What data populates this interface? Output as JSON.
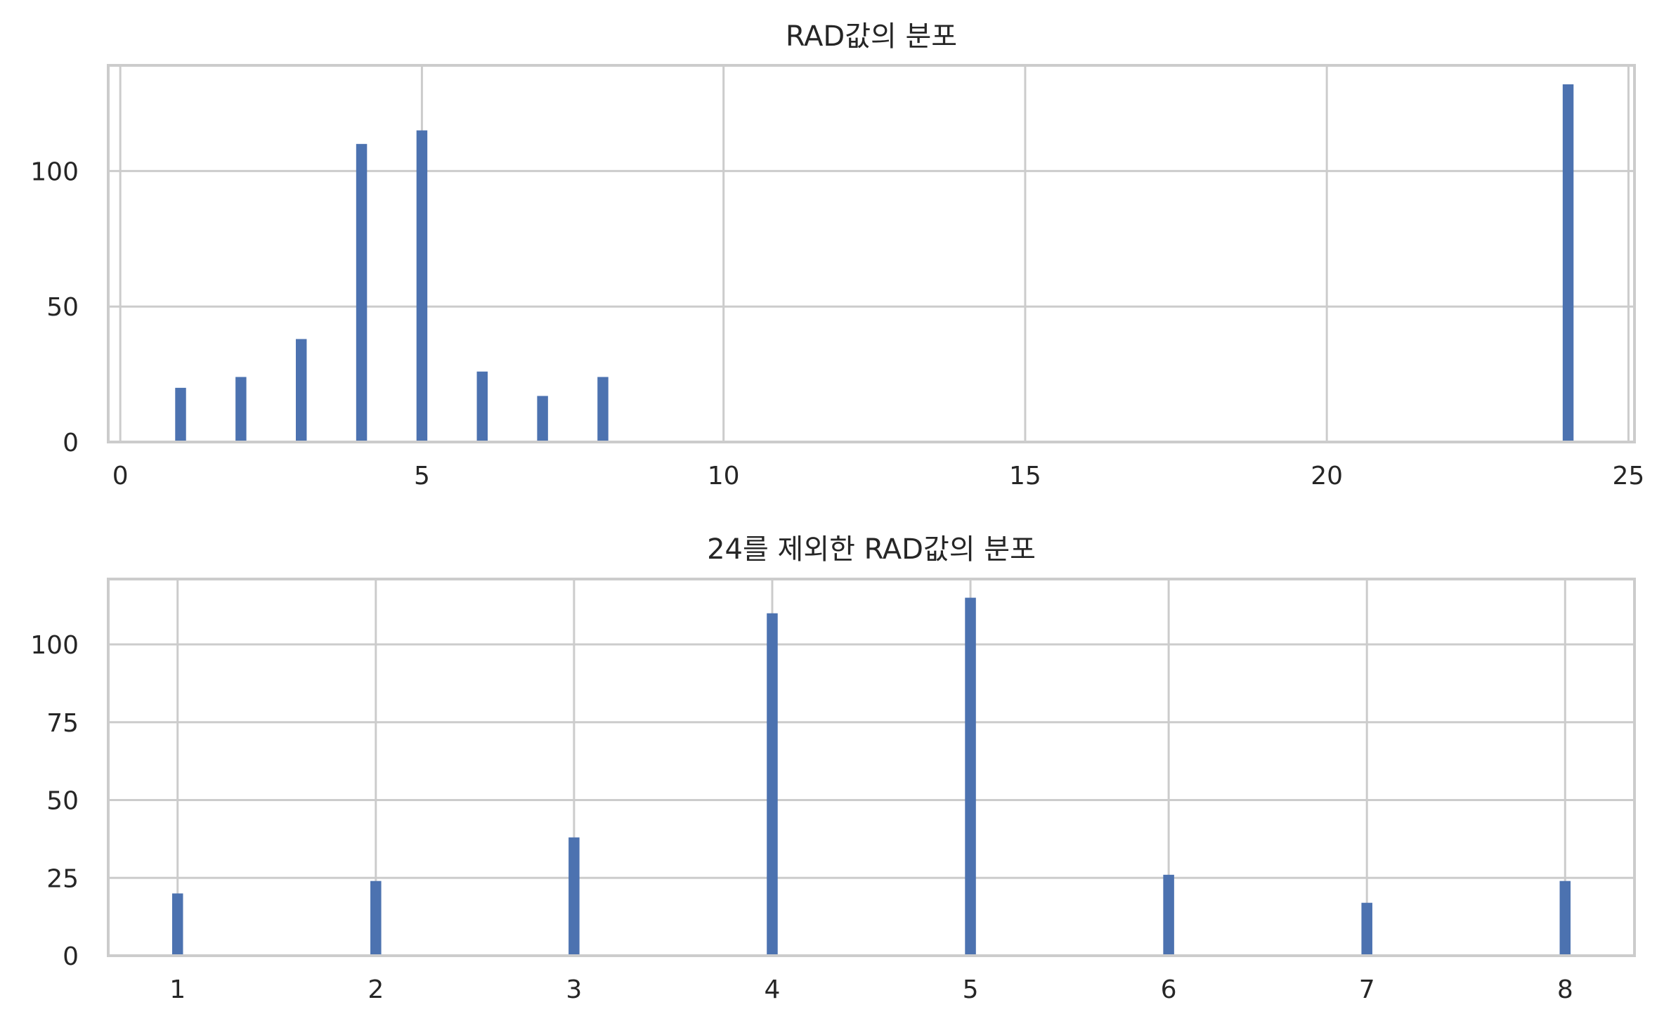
{
  "chart_data": [
    {
      "type": "bar",
      "title": "RAD값의 분포",
      "xlabel": "",
      "ylabel": "",
      "xlim": [
        -0.2,
        25.1
      ],
      "ylim": [
        0,
        139
      ],
      "xticks": [
        0,
        5,
        10,
        15,
        20,
        25
      ],
      "yticks": [
        0,
        50,
        100
      ],
      "bar_width": 0.18,
      "grid": true,
      "color": "#4c72b0",
      "x": [
        1,
        2,
        3,
        4,
        5,
        6,
        7,
        8,
        24
      ],
      "values": [
        20,
        24,
        38,
        110,
        115,
        26,
        17,
        24,
        132
      ]
    },
    {
      "type": "bar",
      "title": "24를 제외한 RAD값의 분포",
      "xlabel": "",
      "ylabel": "",
      "xlim": [
        0.65,
        8.35
      ],
      "ylim": [
        0,
        121
      ],
      "xticks": [
        1,
        2,
        3,
        4,
        5,
        6,
        7,
        8
      ],
      "yticks": [
        0,
        25,
        50,
        75,
        100
      ],
      "bar_width": 0.055,
      "grid": true,
      "color": "#4c72b0",
      "x": [
        1,
        2,
        3,
        4,
        5,
        6,
        7,
        8
      ],
      "values": [
        20,
        24,
        38,
        110,
        115,
        26,
        17,
        24
      ]
    }
  ]
}
